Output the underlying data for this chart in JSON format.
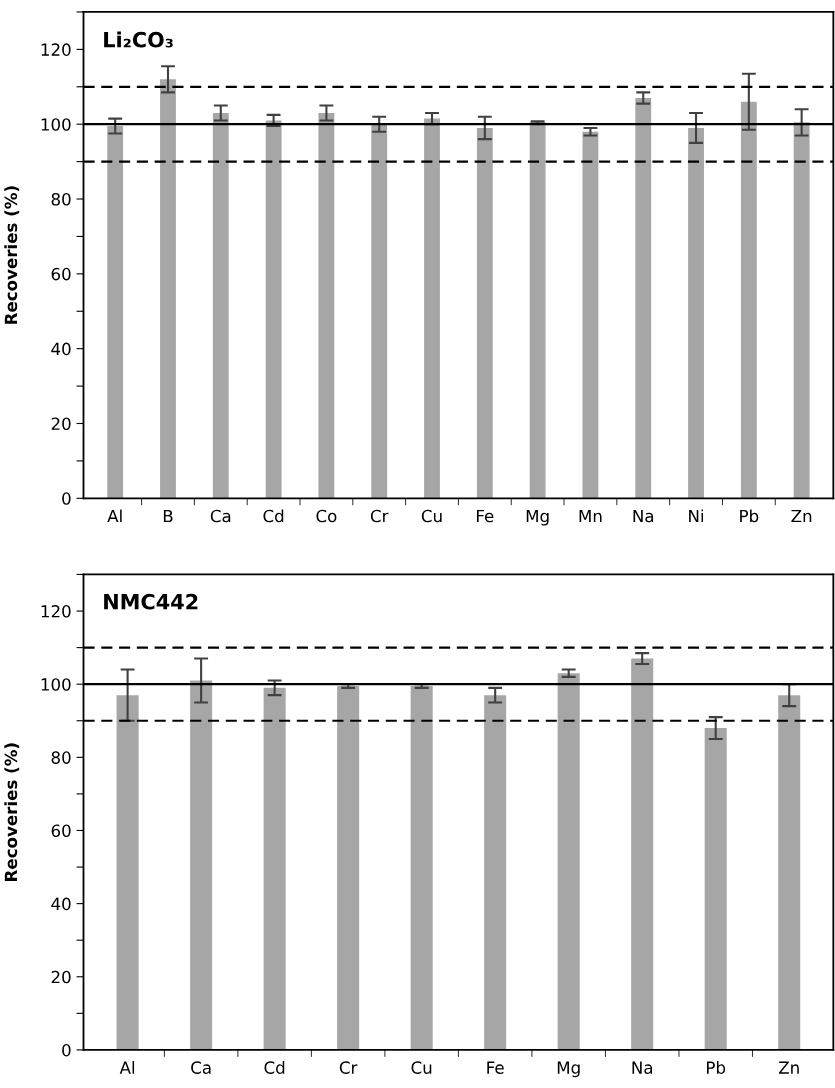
{
  "chart_data": [
    {
      "type": "bar",
      "title": "Li₂CO₃",
      "ylabel": "Recoveries (%)",
      "categories": [
        "Al",
        "B",
        "Ca",
        "Cd",
        "Co",
        "Cr",
        "Cu",
        "Fe",
        "Mg",
        "Mn",
        "Na",
        "Ni",
        "Pb",
        "Zn"
      ],
      "values": [
        99.5,
        112,
        103,
        101,
        103,
        100,
        101.5,
        99,
        100.5,
        98,
        107,
        99,
        106,
        100.5
      ],
      "errors": [
        2,
        3.5,
        2,
        1.5,
        2,
        2,
        1.5,
        3,
        0.3,
        1,
        1.5,
        4,
        7.5,
        3.5
      ],
      "color": "#a6a6a6",
      "ylim": [
        0,
        130
      ],
      "yticks": [
        0,
        {
          "value": 10,
          "label": null
        },
        20,
        {
          "value": 30,
          "label": null
        },
        40,
        {
          "value": 50,
          "label": null
        },
        60,
        {
          "value": 70,
          "label": null
        },
        80,
        {
          "value": 90,
          "label": null
        },
        100,
        {
          "value": 110,
          "label": null
        },
        120,
        {
          "value": 130,
          "label": null
        }
      ],
      "ref_lines": [
        {
          "axis": "y",
          "value": 100,
          "label": null,
          "color": "#000000",
          "line_style": "solid"
        },
        {
          "axis": "y",
          "value": 90,
          "label": null,
          "color": "#000000",
          "line_style": "dashed"
        },
        {
          "axis": "y",
          "value": 110,
          "label": null,
          "color": "#000000",
          "line_style": "dashed"
        }
      ]
    },
    {
      "type": "bar",
      "title": "NMC442",
      "ylabel": "Recoveries (%)",
      "categories": [
        "Al",
        "Ca",
        "Cd",
        "Cr",
        "Cu",
        "Fe",
        "Mg",
        "Na",
        "Pb",
        "Zn"
      ],
      "values": [
        97,
        101,
        99,
        99.5,
        99.5,
        97,
        103,
        107,
        88,
        97
      ],
      "errors": [
        7,
        6,
        2,
        0.5,
        0.5,
        2,
        1,
        1.5,
        3,
        3
      ],
      "color": "#a6a6a6",
      "ylim": [
        0,
        130
      ],
      "yticks": [
        0,
        {
          "value": 10,
          "label": null
        },
        20,
        {
          "value": 30,
          "label": null
        },
        40,
        {
          "value": 50,
          "label": null
        },
        60,
        {
          "value": 70,
          "label": null
        },
        80,
        {
          "value": 90,
          "label": null
        },
        100,
        {
          "value": 110,
          "label": null
        },
        120,
        {
          "value": 130,
          "label": null
        }
      ],
      "ref_lines": [
        {
          "axis": "y",
          "value": 100,
          "label": null,
          "color": "#000000",
          "line_style": "solid"
        },
        {
          "axis": "y",
          "value": 90,
          "label": null,
          "color": "#000000",
          "line_style": "dashed"
        },
        {
          "axis": "y",
          "value": 110,
          "label": null,
          "color": "#000000",
          "line_style": "dashed"
        }
      ]
    }
  ]
}
